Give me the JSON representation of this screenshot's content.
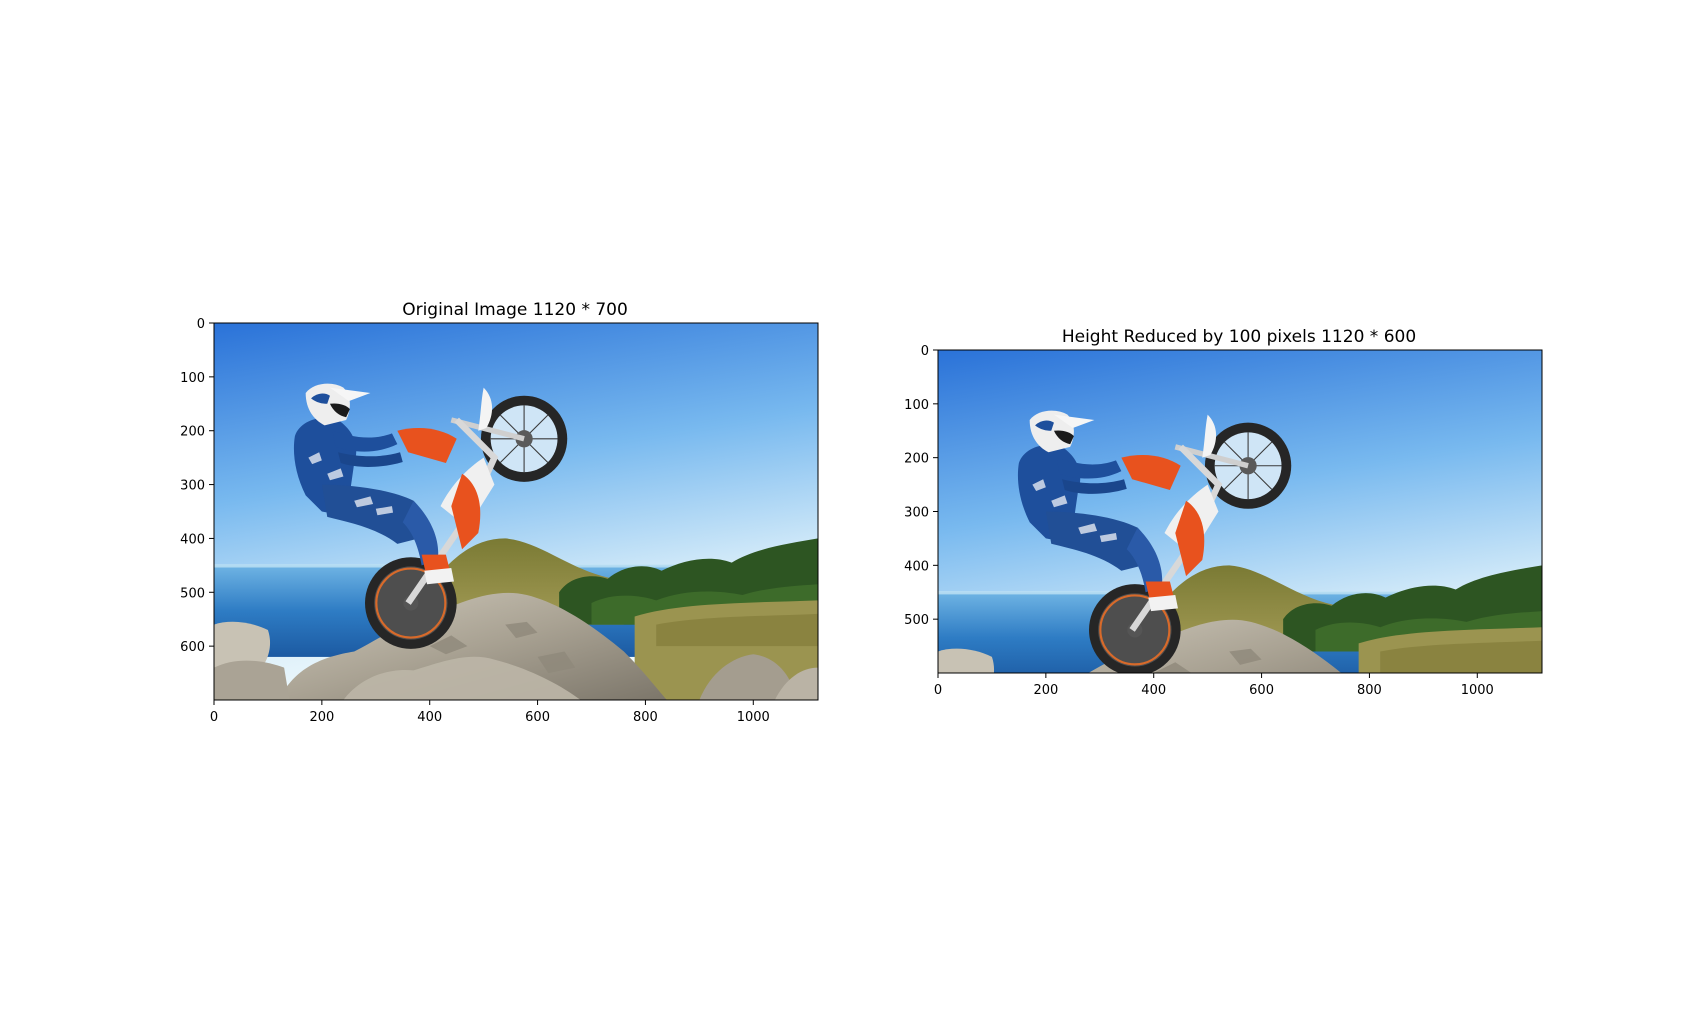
{
  "chart_data": [
    {
      "type": "image",
      "title": "Original Image 1120 * 700",
      "image_width": 1120,
      "image_height": 700,
      "xlim": [
        0,
        1120
      ],
      "ylim": [
        700,
        0
      ],
      "xticks": [
        0,
        200,
        400,
        600,
        800,
        1000
      ],
      "yticks": [
        0,
        100,
        200,
        300,
        400,
        500,
        600
      ],
      "image_content": "dirt bike rider doing wheelie on rocky hill with sea and blue sky"
    },
    {
      "type": "image",
      "title": "Height Reduced by 100 pixels 1120 * 600",
      "image_width": 1120,
      "image_height": 600,
      "xlim": [
        0,
        1120
      ],
      "ylim": [
        600,
        0
      ],
      "xticks": [
        0,
        200,
        400,
        600,
        800,
        1000
      ],
      "yticks": [
        0,
        100,
        200,
        300,
        400,
        500
      ],
      "image_content": "dirt bike rider doing wheelie on rocky hill with sea and blue sky"
    }
  ],
  "colors": {
    "sky_top": "#2e7de0",
    "sky_mid": "#7fc0f2",
    "sky_horizon": "#e9f6fb",
    "sea": "#3a8fd0",
    "sea_dark": "#1d5fa8",
    "hill_grass": "#8a8a3a",
    "trees": "#2f5a22",
    "rock": "#b8b2a4",
    "rock_dark": "#7d776c",
    "rider_blue": "#1e4f9c",
    "bike_orange": "#e8521e",
    "tire": "#2a2a2a",
    "axes": "#000000"
  }
}
